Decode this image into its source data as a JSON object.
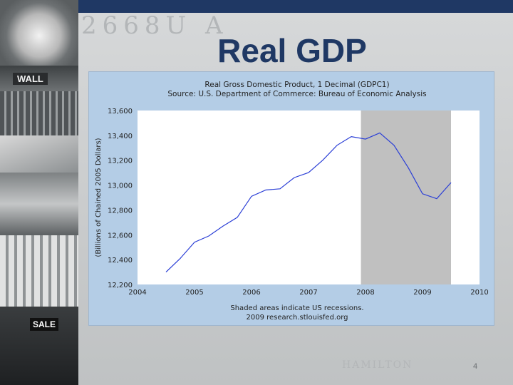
{
  "slide": {
    "title": "Real GDP",
    "page_number": "4",
    "background_text_top": "2668U A",
    "background_text_bottom": "HAMILTON",
    "sign_text_wall": "WALL",
    "sign_text_sale": "SALE"
  },
  "colors": {
    "title": "#1f3864",
    "band": "#1f3864",
    "chart_bg": "#b4cde6",
    "plot_bg": "#ffffff",
    "recession": "#c0c0c0",
    "line": "#2b3fd6"
  },
  "chart_data": {
    "type": "line",
    "title": "Real Gross Domestic Product, 1 Decimal (GDPC1)",
    "subtitle": "Source: U.S. Department of Commerce: Bureau of Economic Analysis",
    "ylabel": "(Billions of Chained 2005 Dollars)",
    "xlabel": "",
    "footnote_1": "Shaded areas indicate US recessions.",
    "footnote_2": "2009 research.stlouisfed.org",
    "xlim": [
      2004,
      2010
    ],
    "ylim": [
      12200,
      13600
    ],
    "x_ticks": [
      "2004",
      "2005",
      "2006",
      "2007",
      "2008",
      "2009",
      "2010"
    ],
    "y_ticks": [
      "12,200",
      "12,400",
      "12,600",
      "12,800",
      "13,000",
      "13,200",
      "13,400",
      "13,600"
    ],
    "recession": [
      2007.92,
      2009.5
    ],
    "series": [
      {
        "name": "GDPC1",
        "x": [
          2004.5,
          2004.75,
          2005.0,
          2005.25,
          2005.5,
          2005.75,
          2006.0,
          2006.25,
          2006.5,
          2006.75,
          2007.0,
          2007.25,
          2007.5,
          2007.75,
          2008.0,
          2008.25,
          2008.5,
          2008.75,
          2009.0,
          2009.25,
          2009.5
        ],
        "values": [
          12300,
          12410,
          12540,
          12590,
          12670,
          12740,
          12910,
          12960,
          12970,
          13060,
          13100,
          13200,
          13320,
          13390,
          13370,
          13420,
          13320,
          13140,
          12930,
          12890,
          13020
        ]
      }
    ]
  }
}
